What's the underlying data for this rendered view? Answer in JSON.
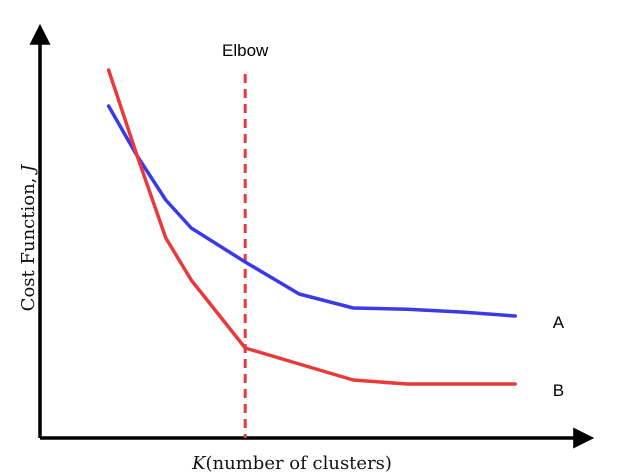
{
  "chart_data": {
    "type": "line",
    "title": "",
    "xlabel_italic": "K",
    "xlabel_rest": "(number of clusters)",
    "ylabel_rest": "Cost Function, ",
    "ylabel_italic": "J",
    "xlim": [
      0,
      10
    ],
    "ylim": [
      0,
      10
    ],
    "grid": false,
    "legend": "none",
    "axis_color": "#000000",
    "annotations": [
      {
        "text": "Elbow",
        "x": 3.8,
        "y": 9.55
      }
    ],
    "vline": {
      "x": 3.8,
      "color": "#e83a3a",
      "dashed": true
    },
    "series": [
      {
        "name": "A",
        "color": "#3a3ae8",
        "label_x": 9.6,
        "x": [
          1.27,
          1.8,
          2.33,
          2.8,
          3.8,
          4.8,
          5.8,
          6.8,
          7.8,
          8.8
        ],
        "y": [
          8.3,
          7.05,
          5.95,
          5.25,
          4.4,
          3.6,
          3.25,
          3.22,
          3.15,
          3.05
        ]
      },
      {
        "name": "B",
        "color": "#e83a3a",
        "label_x": 9.6,
        "x": [
          1.27,
          1.8,
          2.33,
          2.8,
          3.8,
          4.8,
          5.8,
          6.8,
          7.8,
          8.8
        ],
        "y": [
          9.2,
          7.05,
          5.0,
          3.95,
          2.25,
          1.85,
          1.45,
          1.35,
          1.35,
          1.35
        ]
      }
    ]
  }
}
